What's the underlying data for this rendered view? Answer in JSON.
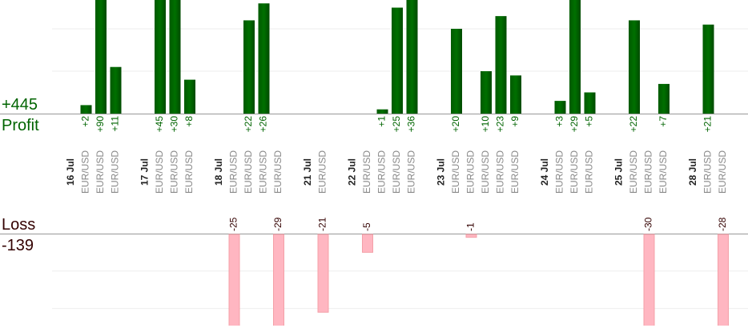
{
  "summary": {
    "profit_total": {
      "value": 445,
      "label": "+445"
    },
    "profit_title": "Profit",
    "loss_title": "Loss",
    "loss_total": -139
  },
  "profit_panel": {
    "ylim": [
      0,
      26.8
    ],
    "gridlines": [
      10,
      20
    ]
  },
  "loss_panel": {
    "ylim": [
      0,
      -25
    ],
    "gridlines": [
      -10,
      -20
    ]
  },
  "days": [
    {
      "date": "16 Jul",
      "trades": [
        {
          "symbol": "EUR/USD",
          "value": 2,
          "value_label": "+2"
        },
        {
          "symbol": "EUR/USD",
          "value": 90,
          "value_label": "+90"
        },
        {
          "symbol": "EUR/USD",
          "value": 11,
          "value_label": "+11"
        }
      ]
    },
    {
      "date": "17 Jul",
      "trades": [
        {
          "symbol": "EUR/USD",
          "value": 45,
          "value_label": "+45"
        },
        {
          "symbol": "EUR/USD",
          "value": 30,
          "value_label": "+30"
        },
        {
          "symbol": "EUR/USD",
          "value": 8,
          "value_label": "+8"
        }
      ]
    },
    {
      "date": "18 Jul",
      "trades": [
        {
          "symbol": "EUR/USD",
          "value": -25
        },
        {
          "symbol": "EUR/USD",
          "value": 22,
          "value_label": "+22"
        },
        {
          "symbol": "EUR/USD",
          "value": 26,
          "value_label": "+26"
        },
        {
          "symbol": "EUR/USD",
          "value": -29
        }
      ]
    },
    {
      "date": "21 Jul",
      "trades": [
        {
          "symbol": "EUR/USD",
          "value": -21
        }
      ]
    },
    {
      "date": "22 Jul",
      "trades": [
        {
          "symbol": "EUR/USD",
          "value": -5
        },
        {
          "symbol": "EUR/USD",
          "value": 1,
          "value_label": "+1"
        },
        {
          "symbol": "EUR/USD",
          "value": 25,
          "value_label": "+25"
        },
        {
          "symbol": "EUR/USD",
          "value": 36,
          "value_label": "+36"
        }
      ]
    },
    {
      "date": "23 Jul",
      "trades": [
        {
          "symbol": "EUR/USD",
          "value": 20,
          "value_label": "+20"
        },
        {
          "symbol": "EUR/USD",
          "value": -1
        },
        {
          "symbol": "EUR/USD",
          "value": 10,
          "value_label": "+10"
        },
        {
          "symbol": "EUR/USD",
          "value": 23,
          "value_label": "+23"
        },
        {
          "symbol": "EUR/USD",
          "value": 9,
          "value_label": "+9"
        }
      ]
    },
    {
      "date": "24 Jul",
      "trades": [
        {
          "symbol": "EUR/USD",
          "value": 3,
          "value_label": "+3"
        },
        {
          "symbol": "EUR/USD",
          "value": 29,
          "value_label": "+29"
        },
        {
          "symbol": "EUR/USD",
          "value": 5,
          "value_label": "+5"
        }
      ]
    },
    {
      "date": "25 Jul",
      "trades": [
        {
          "symbol": "EUR/USD",
          "value": 22,
          "value_label": "+22"
        },
        {
          "symbol": "EUR/USD",
          "value": -30
        },
        {
          "symbol": "EUR/USD",
          "value": 7,
          "value_label": "+7"
        }
      ]
    },
    {
      "date": "28 Jul",
      "trades": [
        {
          "symbol": "EUR/USD",
          "value": 21,
          "value_label": "+21"
        },
        {
          "symbol": "EUR/USD",
          "value": -28
        }
      ]
    }
  ]
}
